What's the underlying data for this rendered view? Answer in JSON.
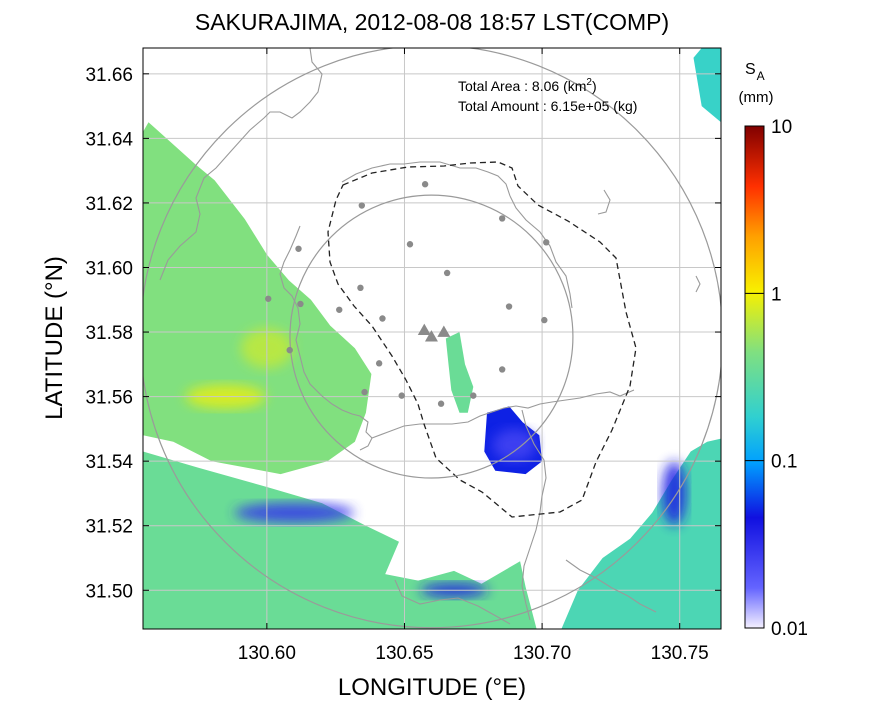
{
  "chart_data": {
    "type": "heatmap",
    "title": "SAKURAJIMA, 2012-08-08 18:57 LST(COMP)",
    "xlabel": "LONGITUDE (°E)",
    "ylabel": "LATITUDE (°N)",
    "xlim": [
      130.555,
      130.765
    ],
    "ylim": [
      31.488,
      31.668
    ],
    "x_ticks": [
      "130.60",
      "130.65",
      "130.70",
      "130.75"
    ],
    "x_tick_values": [
      130.6,
      130.65,
      130.7,
      130.75
    ],
    "y_ticks": [
      "31.50",
      "31.52",
      "31.54",
      "31.56",
      "31.58",
      "31.60",
      "31.62",
      "31.64",
      "31.66"
    ],
    "y_tick_values": [
      31.5,
      31.52,
      31.54,
      31.56,
      31.58,
      31.6,
      31.62,
      31.64,
      31.66
    ],
    "grid": true,
    "colorbar": {
      "label_main": "S",
      "label_sub": "A",
      "unit": "(mm)",
      "scale": "log",
      "range": [
        0.01,
        10
      ],
      "ticks": [
        "10",
        "1",
        "0.1",
        "0.01"
      ],
      "tick_values": [
        10,
        1,
        0.1,
        0.01
      ]
    },
    "annotations": {
      "area_label": "Total Area   : 8.06 (km",
      "area_sup": "2",
      "area_close": ")",
      "amount_label": "Total Amount : 6.15e+05 (kg)"
    },
    "volcano_vents": [
      {
        "x": 130.6572,
        "y": 31.5806
      },
      {
        "x": 130.6598,
        "y": 31.5786
      },
      {
        "x": 130.6643,
        "y": 31.58
      }
    ],
    "stations": [
      {
        "x": 130.6115,
        "y": 31.6058
      },
      {
        "x": 130.6345,
        "y": 31.6192
      },
      {
        "x": 130.6575,
        "y": 31.6258
      },
      {
        "x": 130.6855,
        "y": 31.6152
      },
      {
        "x": 130.7015,
        "y": 31.6078
      },
      {
        "x": 130.652,
        "y": 31.6072
      },
      {
        "x": 130.6655,
        "y": 31.5983
      },
      {
        "x": 130.6005,
        "y": 31.5903
      },
      {
        "x": 130.6122,
        "y": 31.5887
      },
      {
        "x": 130.6263,
        "y": 31.5869
      },
      {
        "x": 130.634,
        "y": 31.5937
      },
      {
        "x": 130.642,
        "y": 31.5842
      },
      {
        "x": 130.688,
        "y": 31.5879
      },
      {
        "x": 130.7008,
        "y": 31.5837
      },
      {
        "x": 130.6083,
        "y": 31.5744
      },
      {
        "x": 130.6408,
        "y": 31.5703
      },
      {
        "x": 130.6855,
        "y": 31.5684
      },
      {
        "x": 130.675,
        "y": 31.5603
      },
      {
        "x": 130.6355,
        "y": 31.5614
      },
      {
        "x": 130.649,
        "y": 31.5603
      },
      {
        "x": 130.6633,
        "y": 31.5578
      }
    ],
    "range_rings": [
      {
        "center": [
          130.6598,
          31.5786
        ],
        "radius_deg_lon": 0.1058
      },
      {
        "center": [
          130.6598,
          31.5786
        ],
        "radius_deg_lon": 0.0514
      }
    ],
    "heat_regions": [
      {
        "name": "northwest",
        "level_mm": 0.45,
        "points": [
          [
            130.555,
            31.642
          ],
          [
            130.557,
            31.645
          ],
          [
            130.574,
            31.632
          ],
          [
            130.581,
            31.627
          ],
          [
            130.592,
            31.615
          ],
          [
            130.6,
            31.604
          ],
          [
            130.608,
            31.596
          ],
          [
            130.616,
            31.59
          ],
          [
            130.623,
            31.582
          ],
          [
            130.632,
            31.575
          ],
          [
            130.638,
            31.567
          ],
          [
            130.636,
            31.555
          ],
          [
            130.632,
            31.546
          ],
          [
            130.622,
            31.54
          ],
          [
            130.605,
            31.536
          ],
          [
            130.58,
            31.54
          ],
          [
            130.566,
            31.546
          ],
          [
            130.555,
            31.548
          ]
        ]
      },
      {
        "name": "southwest",
        "level_mm": 0.35,
        "points": [
          [
            130.555,
            31.543
          ],
          [
            130.575,
            31.538
          ],
          [
            130.6,
            31.532
          ],
          [
            130.62,
            31.527
          ],
          [
            130.636,
            31.52
          ],
          [
            130.648,
            31.515
          ],
          [
            130.643,
            31.505
          ],
          [
            130.655,
            31.503
          ],
          [
            130.668,
            31.506
          ],
          [
            130.678,
            31.502
          ],
          [
            130.692,
            31.509
          ],
          [
            130.694,
            31.501
          ],
          [
            130.698,
            31.488
          ],
          [
            130.555,
            31.488
          ]
        ]
      },
      {
        "name": "southeast",
        "level_mm": 0.25,
        "points": [
          [
            130.707,
            31.488
          ],
          [
            130.713,
            31.5
          ],
          [
            130.722,
            31.51
          ],
          [
            130.732,
            31.516
          ],
          [
            130.74,
            31.524
          ],
          [
            130.747,
            31.534
          ],
          [
            130.754,
            31.543
          ],
          [
            130.76,
            31.546
          ],
          [
            130.765,
            31.547
          ],
          [
            130.765,
            31.488
          ]
        ]
      },
      {
        "name": "northeast-edge",
        "level_mm": 0.2,
        "points": [
          [
            130.755,
            31.665
          ],
          [
            130.758,
            31.668
          ],
          [
            130.765,
            31.668
          ],
          [
            130.765,
            31.645
          ],
          [
            130.758,
            31.65
          ]
        ]
      },
      {
        "name": "plume-upper",
        "level_mm": 0.35,
        "points": [
          [
            130.665,
            31.578
          ],
          [
            130.67,
            31.58
          ],
          [
            130.672,
            31.57
          ],
          [
            130.675,
            31.563
          ],
          [
            130.673,
            31.555
          ],
          [
            130.67,
            31.555
          ],
          [
            130.667,
            31.562
          ],
          [
            130.666,
            31.57
          ]
        ]
      },
      {
        "name": "plume-lower",
        "level_mm": 0.05,
        "points": [
          [
            130.68,
            31.555
          ],
          [
            130.688,
            31.557
          ],
          [
            130.693,
            31.552
          ],
          [
            130.699,
            31.548
          ],
          [
            130.7,
            31.54
          ],
          [
            130.694,
            31.536
          ],
          [
            130.683,
            31.537
          ],
          [
            130.679,
            31.543
          ]
        ]
      }
    ]
  }
}
